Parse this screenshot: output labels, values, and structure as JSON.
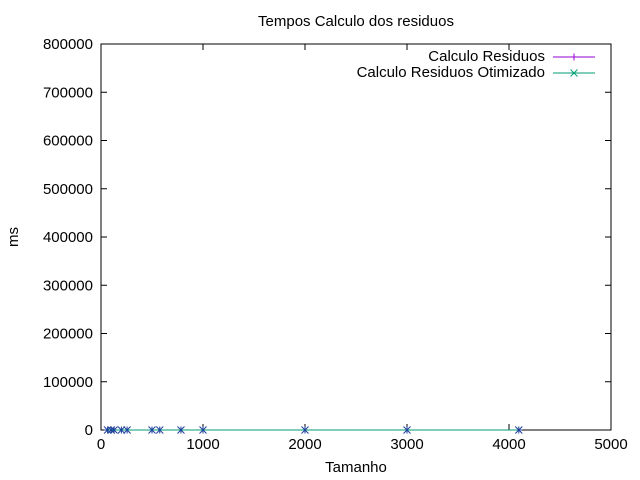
{
  "chart_data": {
    "type": "line",
    "title": "Tempos Calculo dos residuos",
    "xlabel": "Tamanho",
    "ylabel": "ms",
    "xlim": [
      0,
      5000
    ],
    "ylim": [
      0,
      800000
    ],
    "xticks": [
      0,
      1000,
      2000,
      3000,
      4000,
      5000
    ],
    "yticks": [
      0,
      100000,
      200000,
      300000,
      400000,
      500000,
      600000,
      700000,
      800000
    ],
    "grid": false,
    "legend_position": "top-right",
    "series": [
      {
        "name": "Calculo Residuos",
        "color": "#9400d3",
        "marker": "plus",
        "x": [
          64,
          100,
          128,
          200,
          256,
          500,
          576,
          784,
          1000,
          2000,
          3000,
          4096
        ],
        "y": [
          0,
          0,
          0,
          0,
          0,
          0,
          0,
          0,
          0,
          0,
          0,
          0
        ]
      },
      {
        "name": "Calculo Residuos Otimizado",
        "color": "#009e73",
        "marker": "cross",
        "x": [
          64,
          100,
          128,
          200,
          256,
          500,
          576,
          784,
          1000,
          2000,
          3000,
          4096
        ],
        "y": [
          0,
          0,
          0,
          0,
          0,
          0,
          0,
          0,
          0,
          0,
          0,
          0
        ]
      }
    ],
    "overlap_marker_color": "#1f3f9f"
  }
}
